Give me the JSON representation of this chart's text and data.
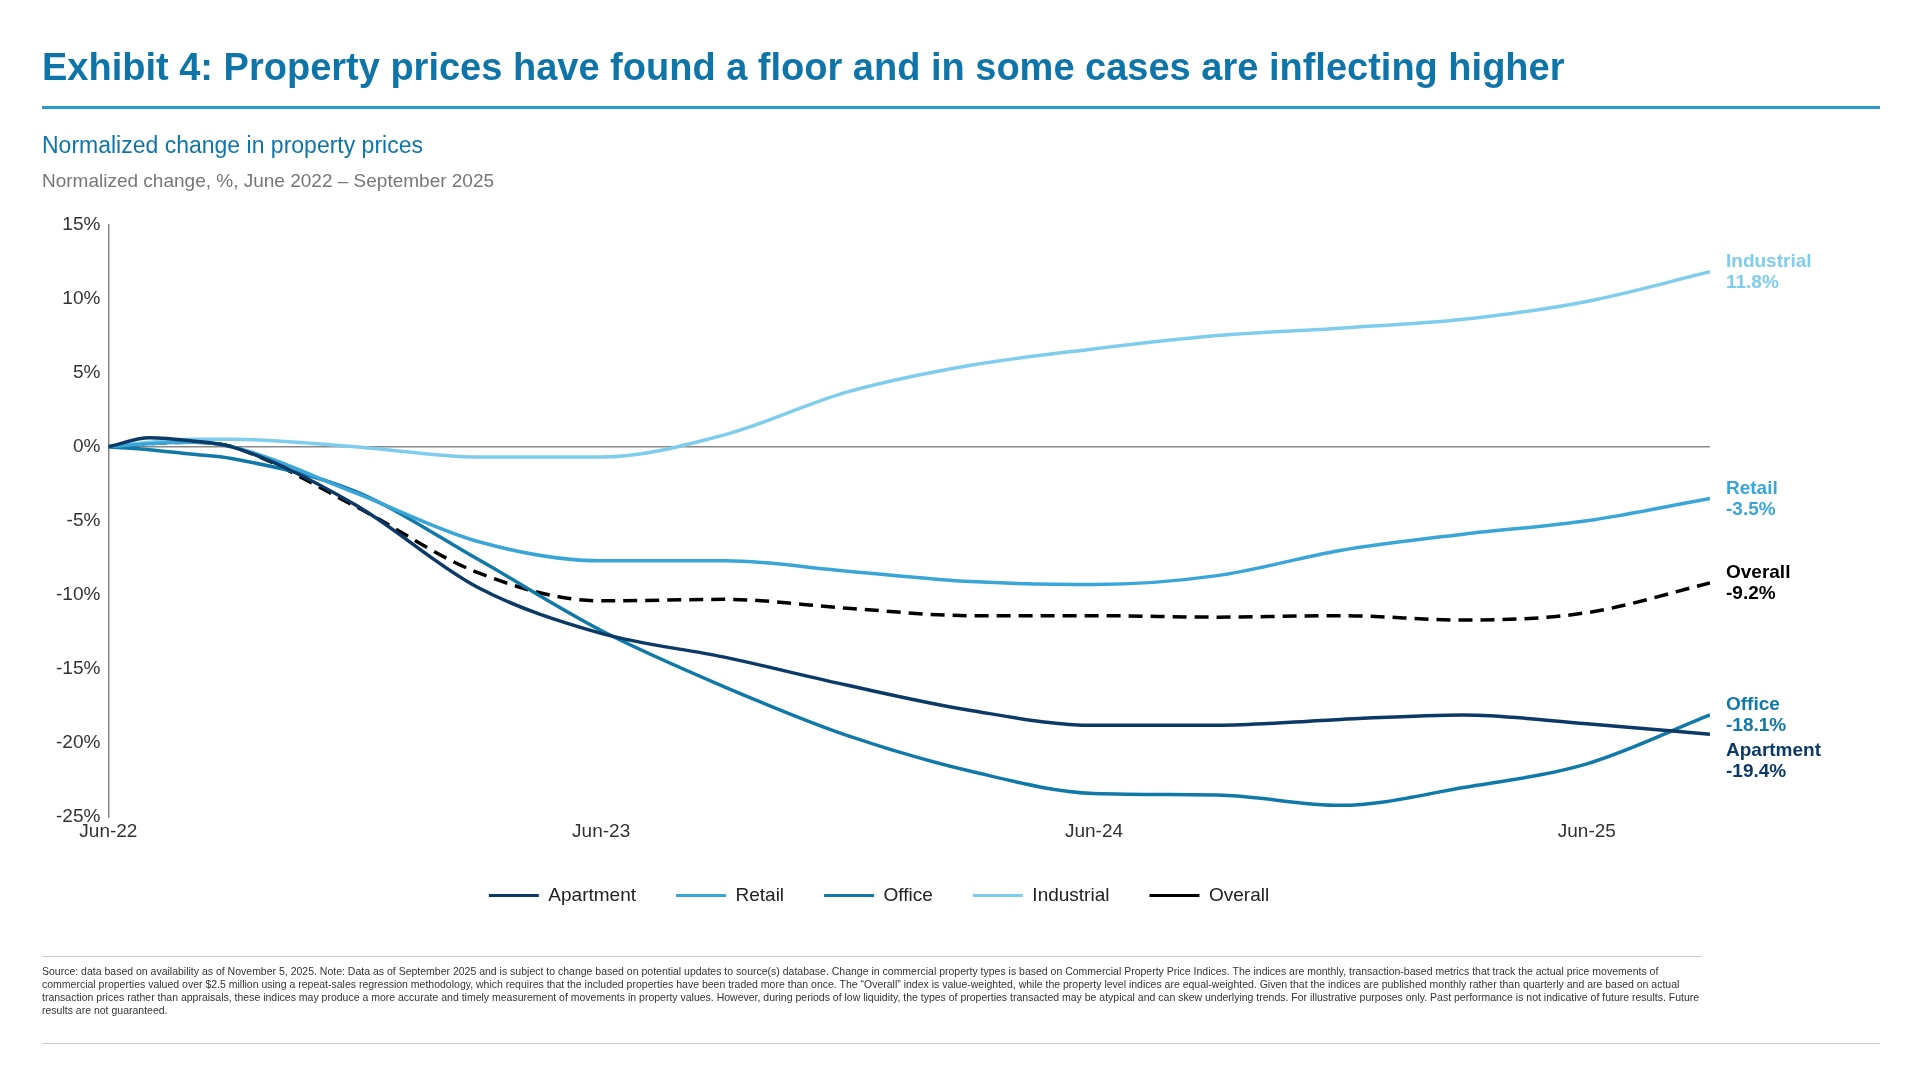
{
  "chart_data": {
    "type": "line",
    "title": "Exhibit 4: Property prices have found a floor and in some cases are inflecting higher",
    "subtitle": "Normalized change in property prices",
    "ylabel": "Normalized change, %, June 2022 – September 2025",
    "x": [
      "2022-06",
      "2022-07",
      "2022-08",
      "2022-09",
      "2022-12",
      "2023-03",
      "2023-06",
      "2023-09",
      "2023-12",
      "2024-03",
      "2024-06",
      "2024-09",
      "2024-12",
      "2025-03",
      "2025-06",
      "2025-09"
    ],
    "xlim": [
      "2022-06",
      "2025-09"
    ],
    "xticks": [
      {
        "value": "2022-06",
        "label": "Jun-22"
      },
      {
        "value": "2023-06",
        "label": "Jun-23"
      },
      {
        "value": "2024-06",
        "label": "Jun-24"
      },
      {
        "value": "2025-06",
        "label": "Jun-25"
      }
    ],
    "ylim": [
      -25,
      15
    ],
    "yticks": [
      {
        "value": -25,
        "label": "-25%"
      },
      {
        "value": -20,
        "label": "-20%"
      },
      {
        "value": -15,
        "label": "-15%"
      },
      {
        "value": -10,
        "label": "-10%"
      },
      {
        "value": -5,
        "label": "-5%"
      },
      {
        "value": 0,
        "label": "0%"
      },
      {
        "value": 5,
        "label": "5%"
      },
      {
        "value": 10,
        "label": "10%"
      },
      {
        "value": 15,
        "label": "15%"
      }
    ],
    "series": [
      {
        "name": "Apartment",
        "color": "#0b3a66",
        "line_style": "solid",
        "values": [
          0,
          0.6,
          0.4,
          0,
          -3.9,
          -9.5,
          -12.6,
          -14.2,
          -16.1,
          -17.8,
          -18.8,
          -18.8,
          -18.4,
          -18.1,
          -18.7,
          -19.4
        ],
        "value_labels": [
          null,
          null,
          null,
          null,
          null,
          null,
          null,
          null,
          null,
          null,
          null,
          null,
          null,
          null,
          null,
          "-19.4%"
        ]
      },
      {
        "name": "Retail",
        "color": "#3aa6d8",
        "line_style": "solid",
        "values": [
          0,
          0.2,
          0.3,
          0,
          -3.1,
          -6.4,
          -7.7,
          -7.7,
          -8.4,
          -9.1,
          -9.3,
          -8.7,
          -7,
          -5.9,
          -5,
          -3.5
        ],
        "value_labels": [
          null,
          null,
          null,
          null,
          null,
          null,
          null,
          null,
          null,
          null,
          null,
          null,
          null,
          null,
          null,
          "-3.5%"
        ]
      },
      {
        "name": "Office",
        "color": "#1179a8",
        "line_style": "solid",
        "values": [
          0,
          -0.2,
          -0.5,
          -0.8,
          -3,
          -7.6,
          -12.4,
          -16.2,
          -19.5,
          -21.9,
          -23.4,
          -23.5,
          -24.2,
          -23,
          -21.4,
          -18.1
        ],
        "value_labels": [
          null,
          null,
          null,
          null,
          null,
          null,
          null,
          null,
          null,
          null,
          null,
          null,
          null,
          null,
          null,
          "-18.1%"
        ]
      },
      {
        "name": "Industrial",
        "color": "#7fcdec",
        "line_style": "solid",
        "values": [
          0,
          0.3,
          0.5,
          0.5,
          0,
          -0.7,
          -0.7,
          0.8,
          3.7,
          5.5,
          6.6,
          7.5,
          8,
          8.6,
          9.8,
          11.8
        ],
        "value_labels": [
          null,
          null,
          null,
          null,
          null,
          null,
          null,
          null,
          null,
          null,
          null,
          null,
          null,
          null,
          null,
          "11.8%"
        ]
      },
      {
        "name": "Overall",
        "color": "#000000",
        "line_style": "dashed",
        "values": [
          0,
          0.2,
          0.3,
          0,
          -4,
          -8.5,
          -10.4,
          -10.3,
          -10.9,
          -11.4,
          -11.4,
          -11.5,
          -11.4,
          -11.7,
          -11.2,
          -9.2
        ],
        "value_labels": [
          null,
          null,
          null,
          null,
          null,
          null,
          null,
          null,
          null,
          null,
          null,
          null,
          null,
          null,
          null,
          "-9.2%"
        ]
      }
    ],
    "legend": "bottom",
    "grid": false,
    "marker": "none",
    "ref_lines": [
      {
        "axis": "y",
        "value": 0,
        "color": "#888888"
      }
    ],
    "annotations": [
      "Source: data based on availability as of November 5, 2025. Note: Data as of September 2025 and is subject to change based on potential updates to source(s) database. Change in commercial property types is based on Commercial Property Price Indices. The indices are monthly, transaction-based metrics that track the actual price movements of commercial properties valued over $2.5 million using a repeat-sales regression methodology, which requires that the included properties have been traded more than once. The “Overall” index is value-weighted, while the property level indices are equal-weighted. Given that the indices are published monthly rather than quarterly and are based on actual transaction prices rather than appraisals, these indices may produce a more accurate and timely measurement of movements in property values. However, during periods of low liquidity, the types of properties transacted may be atypical and can skew underlying trends. For illustrative purposes only. Past performance is not indicative of future results. Future results are not guaranteed."
    ]
  }
}
